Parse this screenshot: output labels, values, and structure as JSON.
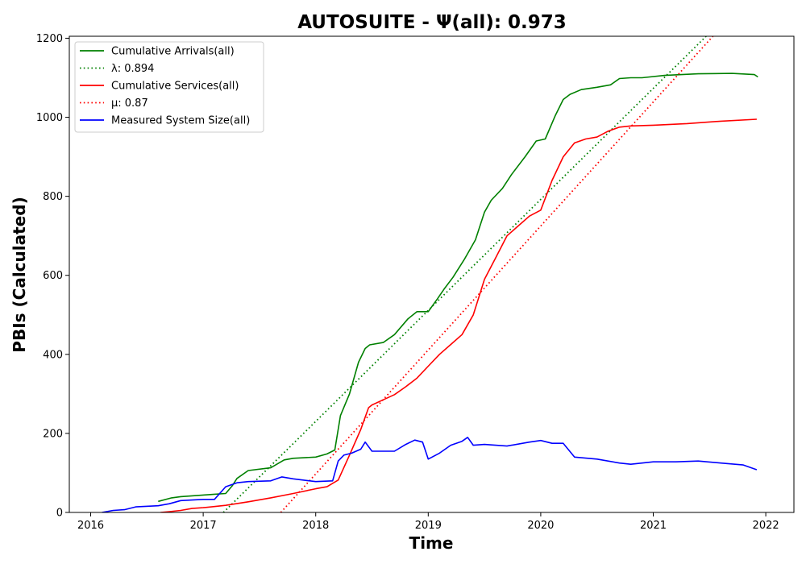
{
  "chart_data": {
    "type": "line",
    "title": "AUTOSUITE -  Ψ(all): 0.973",
    "xlabel": "Time",
    "ylabel": "PBIs (Calculated)",
    "xlim": [
      2015.81,
      2022.25
    ],
    "ylim": [
      0,
      1205
    ],
    "x_ticks": [
      2016,
      2017,
      2018,
      2019,
      2020,
      2021,
      2022
    ],
    "x_tick_labels": [
      "2016",
      "2017",
      "2018",
      "2019",
      "2020",
      "2021",
      "2022"
    ],
    "y_ticks": [
      0,
      200,
      400,
      600,
      800,
      1000,
      1200
    ],
    "y_tick_labels": [
      "0",
      "200",
      "400",
      "600",
      "800",
      "1000",
      "1200"
    ],
    "legend_position": "upper-left",
    "series": [
      {
        "name": "Cumulative Arrivals(all)",
        "style": "solid",
        "color": "#008000",
        "x": [
          2016.6,
          2016.72,
          2016.8,
          2017.0,
          2017.1,
          2017.2,
          2017.26,
          2017.3,
          2017.4,
          2017.6,
          2017.72,
          2017.8,
          2018.0,
          2018.1,
          2018.17,
          2018.22,
          2018.3,
          2018.38,
          2018.44,
          2018.48,
          2018.6,
          2018.7,
          2018.82,
          2018.9,
          2019.0,
          2019.08,
          2019.14,
          2019.22,
          2019.32,
          2019.42,
          2019.5,
          2019.56,
          2019.66,
          2019.74,
          2019.86,
          2019.96,
          2020.04,
          2020.13,
          2020.2,
          2020.26,
          2020.36,
          2020.5,
          2020.62,
          2020.7,
          2020.8,
          2020.9,
          2021.1,
          2021.4,
          2021.7,
          2021.9,
          2021.93
        ],
        "y": [
          28,
          37,
          40,
          44,
          46,
          48,
          68,
          86,
          106,
          113,
          133,
          137,
          140,
          148,
          158,
          245,
          300,
          380,
          415,
          424,
          430,
          450,
          490,
          508,
          508,
          540,
          565,
          595,
          640,
          690,
          760,
          790,
          820,
          855,
          900,
          940,
          945,
          1005,
          1045,
          1058,
          1070,
          1076,
          1082,
          1098,
          1100,
          1100,
          1106,
          1110,
          1111,
          1108,
          1102
        ]
      },
      {
        "name": "λ: 0.894",
        "style": "dotted",
        "color": "#008000",
        "x": [
          2017.18,
          2021.47
        ],
        "y": [
          0,
          1205
        ]
      },
      {
        "name": "Cumulative Services(all)",
        "style": "solid",
        "color": "#ff0000",
        "x": [
          2016.62,
          2016.7,
          2016.8,
          2016.9,
          2017.0,
          2017.2,
          2017.4,
          2017.6,
          2017.8,
          2018.0,
          2018.1,
          2018.2,
          2018.3,
          2018.4,
          2018.47,
          2018.5,
          2018.6,
          2018.7,
          2018.8,
          2018.9,
          2019.0,
          2019.1,
          2019.2,
          2019.3,
          2019.4,
          2019.5,
          2019.6,
          2019.7,
          2019.8,
          2019.9,
          2020.0,
          2020.1,
          2020.2,
          2020.3,
          2020.4,
          2020.5,
          2020.6,
          2020.7,
          2020.8,
          2021.0,
          2021.3,
          2021.6,
          2021.92
        ],
        "y": [
          0,
          2,
          5,
          10,
          12,
          18,
          27,
          37,
          48,
          60,
          65,
          82,
          145,
          210,
          265,
          272,
          285,
          298,
          318,
          340,
          370,
          400,
          425,
          450,
          500,
          590,
          645,
          700,
          725,
          750,
          765,
          840,
          900,
          935,
          945,
          950,
          965,
          975,
          978,
          980,
          984,
          990,
          995
        ]
      },
      {
        "name": "μ: 0.87",
        "style": "dotted",
        "color": "#ff0000",
        "x": [
          2017.69,
          2021.53
        ],
        "y": [
          0,
          1205
        ]
      },
      {
        "name": "Measured System Size(all)",
        "style": "solid",
        "color": "#0000ff",
        "x": [
          2016.1,
          2016.2,
          2016.3,
          2016.4,
          2016.6,
          2016.7,
          2016.8,
          2017.0,
          2017.1,
          2017.2,
          2017.3,
          2017.4,
          2017.6,
          2017.7,
          2017.8,
          2018.0,
          2018.15,
          2018.2,
          2018.25,
          2018.32,
          2018.4,
          2018.44,
          2018.5,
          2018.7,
          2018.8,
          2018.88,
          2018.95,
          2019.0,
          2019.1,
          2019.2,
          2019.3,
          2019.35,
          2019.4,
          2019.5,
          2019.7,
          2019.9,
          2020.0,
          2020.1,
          2020.2,
          2020.3,
          2020.5,
          2020.7,
          2020.8,
          2021.0,
          2021.2,
          2021.4,
          2021.6,
          2021.8,
          2021.92
        ],
        "y": [
          0,
          5,
          7,
          14,
          17,
          22,
          30,
          33,
          33,
          65,
          75,
          78,
          80,
          90,
          85,
          78,
          80,
          130,
          145,
          150,
          160,
          178,
          155,
          155,
          172,
          183,
          178,
          135,
          150,
          170,
          180,
          190,
          170,
          172,
          168,
          178,
          182,
          175,
          175,
          140,
          135,
          125,
          122,
          128,
          128,
          130,
          125,
          120,
          108
        ]
      }
    ]
  }
}
